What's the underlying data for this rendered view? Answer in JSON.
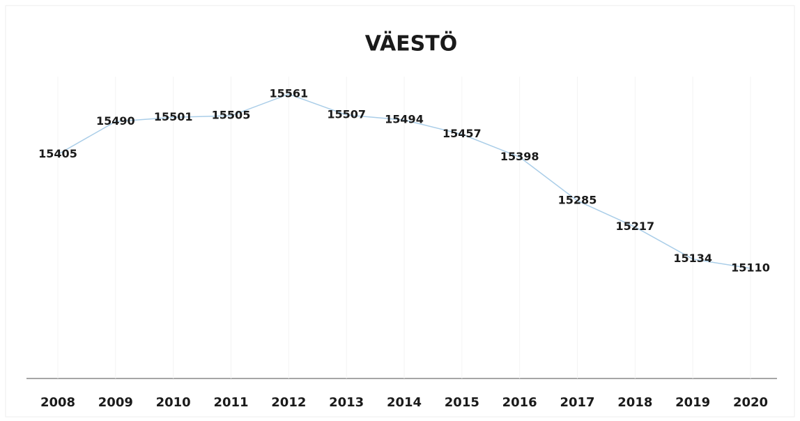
{
  "chart_data": {
    "type": "line",
    "title": "VÄESTÖ",
    "categories": [
      "2008",
      "2009",
      "2010",
      "2011",
      "2012",
      "2013",
      "2014",
      "2015",
      "2016",
      "2017",
      "2018",
      "2019",
      "2020"
    ],
    "series": [
      {
        "color": "#a9cde8",
        "values": [
          15405,
          15490,
          15501,
          15505,
          15561,
          15507,
          15494,
          15457,
          15398,
          15285,
          15217,
          15134,
          15110
        ]
      }
    ]
  }
}
